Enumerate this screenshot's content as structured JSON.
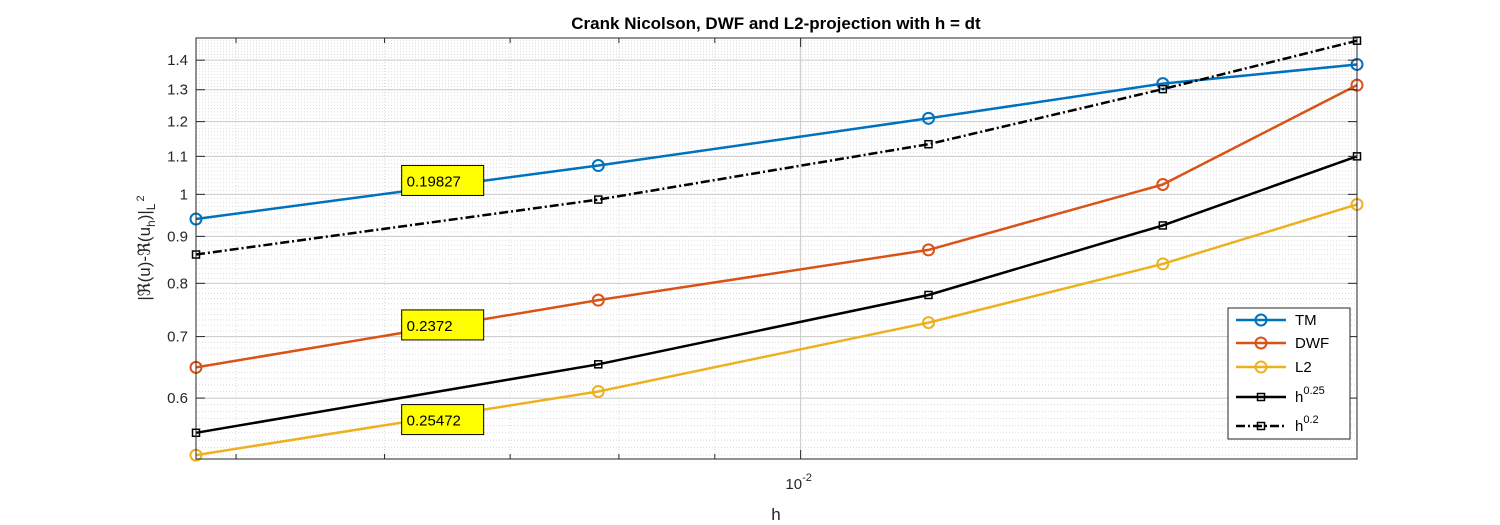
{
  "chart_data": {
    "type": "line",
    "title": "Crank Nicolson, DWF and L2-projection with h = dt",
    "xlabel": "h",
    "ylabel": {
      "main": "|ℜ(u)-ℜ(u",
      "sub_h": "h",
      "close": ")|",
      "sub_L": "L",
      "sup_2": "2"
    },
    "xscale": "log",
    "yscale": "log",
    "xlim": [
      0.00476,
      0.0198
    ],
    "ylim": [
      0.515,
      1.48
    ],
    "x_ticks": [
      {
        "value": 0.01,
        "base": "10",
        "exp": "-2"
      }
    ],
    "y_ticks": [
      {
        "value": 0.6,
        "label": "0.6"
      },
      {
        "value": 0.7,
        "label": "0.7"
      },
      {
        "value": 0.8,
        "label": "0.8"
      },
      {
        "value": 0.9,
        "label": "0.9"
      },
      {
        "value": 1.0,
        "label": "1"
      },
      {
        "value": 1.1,
        "label": "1.1"
      },
      {
        "value": 1.2,
        "label": "1.2"
      },
      {
        "value": 1.3,
        "label": "1.3"
      },
      {
        "value": 1.4,
        "label": "1.4"
      }
    ],
    "grid": true,
    "minor_grid": true,
    "legend_position": "bottom-right",
    "x": [
      0.00476,
      0.0078,
      0.0117,
      0.0156,
      0.0198
    ],
    "series": [
      {
        "name": "TM",
        "values": [
          0.94,
          1.075,
          1.21,
          1.32,
          1.385
        ],
        "color": "#0072BD",
        "marker": "circle",
        "dash": "solid"
      },
      {
        "name": "DWF",
        "values": [
          0.648,
          0.767,
          0.87,
          1.025,
          1.315
        ],
        "color": "#D95319",
        "marker": "circle",
        "dash": "solid"
      },
      {
        "name": "L2",
        "values": [
          0.52,
          0.61,
          0.725,
          0.84,
          0.975
        ],
        "color": "#EDB120",
        "marker": "circle",
        "dash": "solid"
      },
      {
        "name": {
          "base": "h",
          "sup": "0.25"
        },
        "values": [
          0.55,
          0.653,
          0.777,
          0.925,
          1.1
        ],
        "color": "#000000",
        "marker": "square",
        "dash": "solid"
      },
      {
        "name": {
          "base": "h",
          "sup": "0.2"
        },
        "values": [
          0.86,
          0.987,
          1.134,
          1.302,
          1.47
        ],
        "color": "#000000",
        "marker": "square",
        "dash": "dashdot"
      }
    ],
    "annotations": [
      {
        "text": "0.19827",
        "x": 0.00615,
        "y": 1.02
      },
      {
        "text": "0.2372",
        "x": 0.00615,
        "y": 0.71
      },
      {
        "text": "0.25472",
        "x": 0.00615,
        "y": 0.56
      }
    ]
  }
}
